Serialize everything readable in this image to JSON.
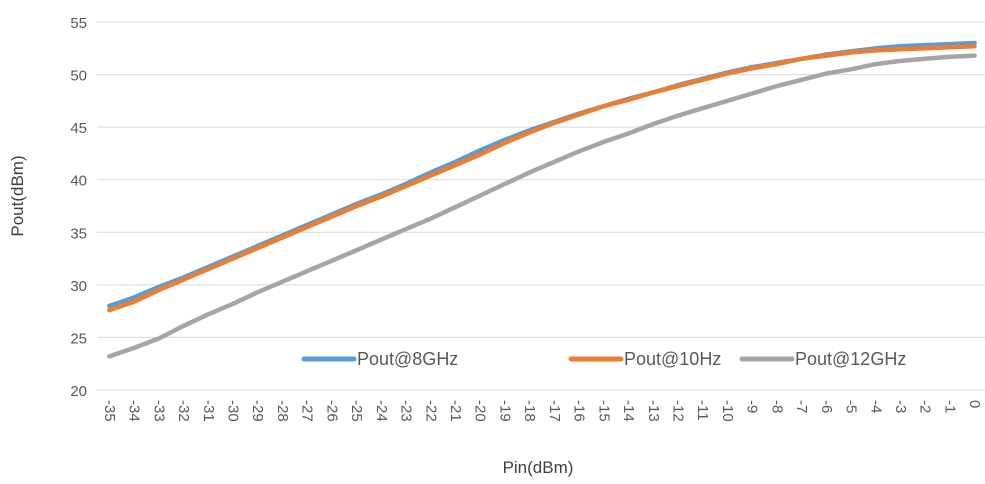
{
  "chart_data": {
    "type": "line",
    "xlabel": "Pin(dBm)",
    "ylabel": "Pout(dBm)",
    "ylim": [
      20,
      55
    ],
    "yticks": [
      20,
      25,
      30,
      35,
      40,
      45,
      50,
      55
    ],
    "categories": [
      "-35",
      "-34",
      "-33",
      "-32",
      "-31",
      "-30",
      "-29",
      "-28",
      "-27",
      "-26",
      "-25",
      "-24",
      "-23",
      "-22",
      "-21",
      "-20",
      "-19",
      "-18",
      "-17",
      "-16",
      "-15",
      "-14",
      "-13",
      "-12",
      "-11",
      "-10",
      "-9",
      "-8",
      "-7",
      "-6",
      "-5",
      "-4",
      "-3",
      "-2",
      "-1",
      "0"
    ],
    "grid": "horizontal",
    "legend_position": "bottom-right",
    "series": [
      {
        "name": "Pout@8GHz",
        "color": "#5b9bd5",
        "values": [
          28.0,
          28.8,
          29.8,
          30.7,
          31.7,
          32.7,
          33.7,
          34.7,
          35.7,
          36.7,
          37.7,
          38.6,
          39.6,
          40.7,
          41.7,
          42.8,
          43.8,
          44.7,
          45.5,
          46.3,
          47.0,
          47.7,
          48.3,
          49.0,
          49.6,
          50.2,
          50.7,
          51.1,
          51.5,
          51.9,
          52.2,
          52.5,
          52.7,
          52.8,
          52.9,
          53.0
        ]
      },
      {
        "name": "Pout@10Hz",
        "color": "#ed7d31",
        "values": [
          27.6,
          28.4,
          29.5,
          30.5,
          31.5,
          32.5,
          33.5,
          34.5,
          35.5,
          36.5,
          37.5,
          38.4,
          39.4,
          40.4,
          41.4,
          42.4,
          43.5,
          44.5,
          45.4,
          46.2,
          47.0,
          47.6,
          48.3,
          48.9,
          49.5,
          50.1,
          50.6,
          51.0,
          51.5,
          51.8,
          52.1,
          52.3,
          52.4,
          52.5,
          52.6,
          52.7
        ]
      },
      {
        "name": "Pout@12GHz",
        "color": "#a5a5a5",
        "values": [
          23.2,
          24.0,
          24.9,
          26.1,
          27.2,
          28.2,
          29.3,
          30.3,
          31.3,
          32.3,
          33.3,
          34.3,
          35.3,
          36.3,
          37.4,
          38.5,
          39.6,
          40.7,
          41.7,
          42.7,
          43.6,
          44.4,
          45.3,
          46.1,
          46.8,
          47.5,
          48.2,
          48.9,
          49.5,
          50.1,
          50.5,
          51.0,
          51.3,
          51.5,
          51.7,
          51.8
        ]
      }
    ]
  }
}
